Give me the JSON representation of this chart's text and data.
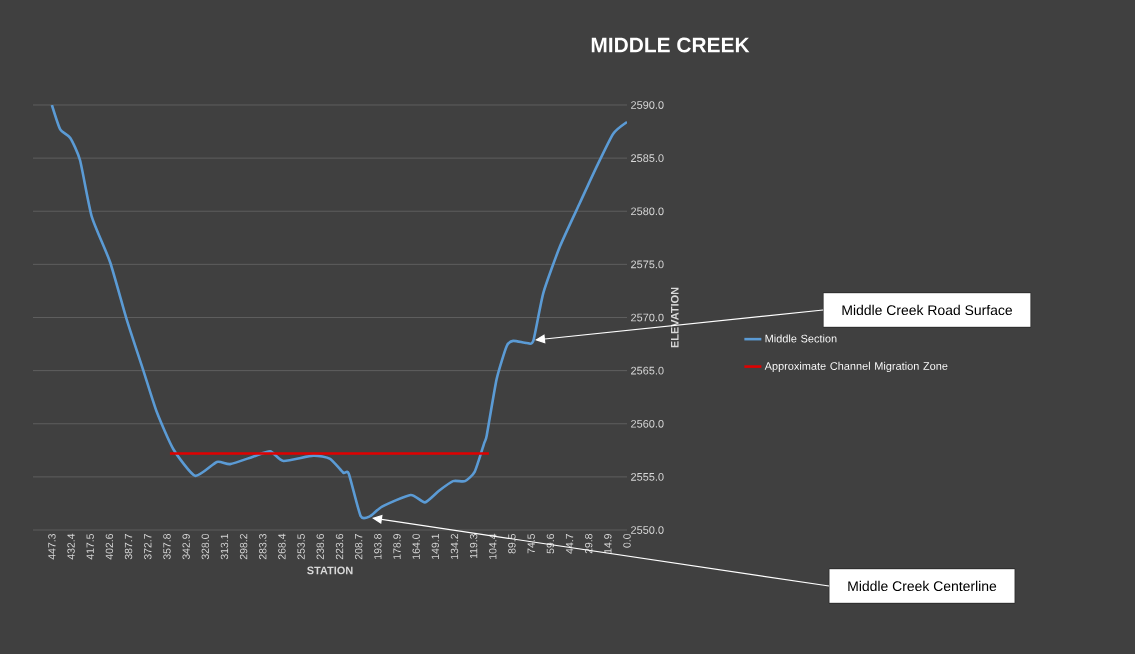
{
  "chart_data": {
    "type": "line",
    "title": "MIDDLE CREEK",
    "xlabel": "STATION",
    "ylabel": "ELEVATION",
    "xlim": [
      462,
      0
    ],
    "xticks": [
      447.3,
      432.4,
      417.5,
      402.6,
      387.7,
      372.7,
      357.8,
      342.9,
      {
        "value": 328,
        "label": "328.0"
      },
      313.1,
      298.2,
      283.3,
      268.4,
      253.5,
      238.6,
      223.6,
      208.7,
      193.8,
      178.9,
      {
        "value": 164,
        "label": "164.0"
      },
      149.1,
      134.2,
      119.3,
      104.4,
      89.5,
      74.5,
      59.6,
      44.7,
      29.8,
      14.9,
      {
        "value": 0,
        "label": "0.0"
      }
    ],
    "ylim": [
      2550,
      2590
    ],
    "yticks": [
      {
        "value": 2550,
        "label": "2550.0"
      },
      {
        "value": 2555,
        "label": "2555.0"
      },
      {
        "value": 2560,
        "label": "2560.0"
      },
      {
        "value": 2565,
        "label": "2565.0"
      },
      {
        "value": 2570,
        "label": "2570.0"
      },
      {
        "value": 2575,
        "label": "2575.0"
      },
      {
        "value": 2580,
        "label": "2580.0"
      },
      {
        "value": 2585,
        "label": "2585.0"
      },
      {
        "value": 2590,
        "label": "2590.0"
      }
    ],
    "grid": "y",
    "legend": "right",
    "series": [
      {
        "name": "Middle Section",
        "color": "#5b9bd5",
        "x": [
          447.3,
          440.8,
          433,
          425.4,
          416.3,
          402,
          389.1,
          376.4,
          365.7,
          352.8,
          335.9,
          319,
          308.7,
          290.8,
          277.5,
          267.2,
          244,
          230.9,
          220.7,
          216.4,
          207.1,
          199.8,
          190.5,
          168.3,
          157.2,
          146.2,
          135.3,
          126,
          118.4,
          111,
          109.1,
          101.4,
          93.6,
          88.5,
          78.1,
          72.9,
          65.1,
          52.1,
          36.6,
          23.6,
          10.7,
          0
        ],
        "values": [
          2590,
          2587.7,
          2586.9,
          2584.8,
          2579.5,
          2575.2,
          2569.8,
          2565.1,
          2561.1,
          2557.6,
          2555.1,
          2556.4,
          2556.2,
          2556.9,
          2557.4,
          2556.5,
          2557,
          2556.7,
          2555.4,
          2555.3,
          2551.3,
          2551.3,
          2552.2,
          2553.3,
          2552.6,
          2553.7,
          2554.6,
          2554.6,
          2555.5,
          2558.2,
          2558.9,
          2564.2,
          2567.3,
          2567.8,
          2567.6,
          2567.8,
          2572.3,
          2576.7,
          2580.8,
          2584.2,
          2587.3,
          2588.4
        ]
      },
      {
        "name": "Approximate Channel Migration Zone",
        "color": "#e00000",
        "x": [
          355.5,
          107.4
        ],
        "values": [
          2557.2,
          2557.2
        ]
      }
    ],
    "annotations": [
      "Middle Creek Road Surface",
      "Middle Creek Centerline"
    ]
  }
}
